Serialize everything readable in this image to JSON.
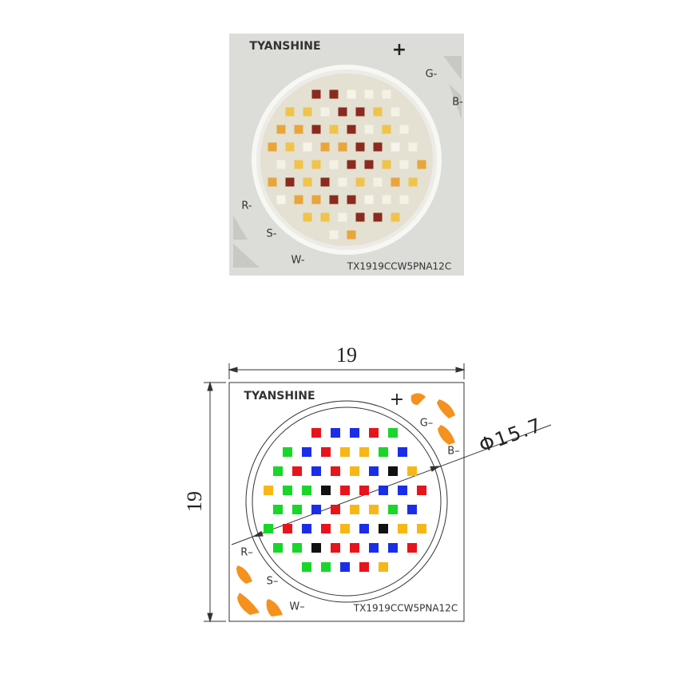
{
  "photo": {
    "brand": "TYANSHINE",
    "plus": "+",
    "pads": [
      "G-",
      "B-",
      "R-",
      "S-",
      "W-"
    ],
    "model": "TX1919CCW5PNA12C"
  },
  "drawing": {
    "width": "19",
    "height": "19",
    "diameter": "Φ15.7",
    "brand": "TYANSHINE",
    "plus": "+",
    "pads": [
      "G–",
      "B–",
      "R–",
      "S–",
      "W–"
    ],
    "model": "TX1919CCW5PNA12C"
  }
}
